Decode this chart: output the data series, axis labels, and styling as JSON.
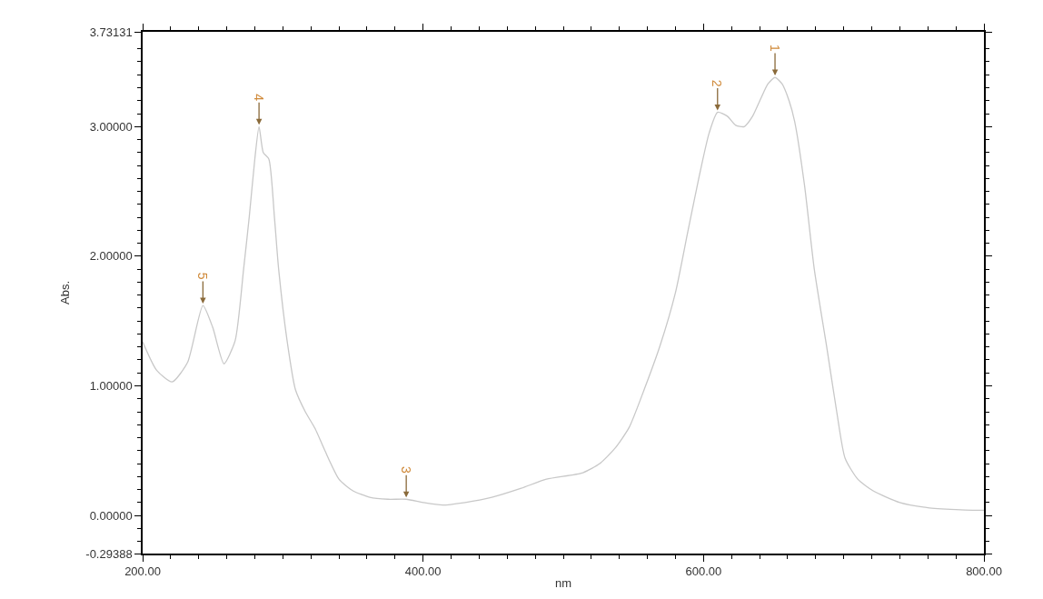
{
  "chart_data": {
    "type": "line",
    "xlabel": "nm",
    "ylabel": "Abs.",
    "x": [
      200,
      210,
      221,
      232,
      243,
      250,
      258,
      266,
      272,
      276,
      280,
      283,
      286,
      290,
      294,
      297,
      303,
      309,
      316,
      323,
      330,
      340,
      350,
      362,
      375,
      388,
      400,
      414,
      430,
      449,
      470,
      488,
      514,
      526,
      537,
      547,
      558,
      569,
      580,
      589,
      597,
      604,
      610,
      617,
      623,
      629,
      635,
      641,
      646,
      651,
      656,
      661,
      665,
      672,
      679,
      688,
      695,
      701,
      710,
      721,
      740,
      760,
      780,
      792,
      800
    ],
    "series": [
      {
        "color": "#c8c8c8",
        "values": [
          1.34,
          1.12,
          1.03,
          1.18,
          1.62,
          1.45,
          1.17,
          1.35,
          1.9,
          2.3,
          2.75,
          3.0,
          2.8,
          2.75,
          2.3,
          1.9,
          1.35,
          0.97,
          0.8,
          0.67,
          0.5,
          0.28,
          0.19,
          0.14,
          0.125,
          0.125,
          0.1,
          0.08,
          0.1,
          0.14,
          0.21,
          0.28,
          0.33,
          0.4,
          0.52,
          0.68,
          0.98,
          1.31,
          1.72,
          2.2,
          2.62,
          2.95,
          3.11,
          3.08,
          3.01,
          3.0,
          3.08,
          3.22,
          3.33,
          3.38,
          3.33,
          3.2,
          3.04,
          2.55,
          1.9,
          1.29,
          0.8,
          0.44,
          0.28,
          0.19,
          0.1,
          0.06,
          0.045,
          0.04,
          0.04
        ]
      }
    ],
    "xlim": [
      200,
      800
    ],
    "ylim": [
      -0.29388,
      3.73131
    ],
    "xticks": [
      {
        "value": 200,
        "label": "200.00"
      },
      {
        "value": 220,
        "label": null
      },
      {
        "value": 240,
        "label": null
      },
      {
        "value": 260,
        "label": null
      },
      {
        "value": 280,
        "label": null
      },
      {
        "value": 300,
        "label": null
      },
      {
        "value": 320,
        "label": null
      },
      {
        "value": 340,
        "label": null
      },
      {
        "value": 360,
        "label": null
      },
      {
        "value": 380,
        "label": null
      },
      {
        "value": 400,
        "label": "400.00"
      },
      {
        "value": 420,
        "label": null
      },
      {
        "value": 440,
        "label": null
      },
      {
        "value": 460,
        "label": null
      },
      {
        "value": 480,
        "label": null
      },
      {
        "value": 500,
        "label": null
      },
      {
        "value": 520,
        "label": null
      },
      {
        "value": 540,
        "label": null
      },
      {
        "value": 560,
        "label": null
      },
      {
        "value": 580,
        "label": null
      },
      {
        "value": 600,
        "label": "600.00"
      },
      {
        "value": 620,
        "label": null
      },
      {
        "value": 640,
        "label": null
      },
      {
        "value": 660,
        "label": null
      },
      {
        "value": 680,
        "label": null
      },
      {
        "value": 700,
        "label": null
      },
      {
        "value": 720,
        "label": null
      },
      {
        "value": 740,
        "label": null
      },
      {
        "value": 760,
        "label": null
      },
      {
        "value": 780,
        "label": null
      },
      {
        "value": 800,
        "label": "800.00"
      }
    ],
    "yticks": [
      {
        "value": -0.29388,
        "label": "-0.29388"
      },
      {
        "value": -0.2,
        "label": null
      },
      {
        "value": -0.1,
        "label": null
      },
      {
        "value": 0,
        "label": "0.00000"
      },
      {
        "value": 0.1,
        "label": null
      },
      {
        "value": 0.2,
        "label": null
      },
      {
        "value": 0.3,
        "label": null
      },
      {
        "value": 0.4,
        "label": null
      },
      {
        "value": 0.5,
        "label": null
      },
      {
        "value": 0.6,
        "label": null
      },
      {
        "value": 0.7,
        "label": null
      },
      {
        "value": 0.8,
        "label": null
      },
      {
        "value": 0.9,
        "label": null
      },
      {
        "value": 1,
        "label": "1.00000"
      },
      {
        "value": 1.1,
        "label": null
      },
      {
        "value": 1.2,
        "label": null
      },
      {
        "value": 1.3,
        "label": null
      },
      {
        "value": 1.4,
        "label": null
      },
      {
        "value": 1.5,
        "label": null
      },
      {
        "value": 1.6,
        "label": null
      },
      {
        "value": 1.7,
        "label": null
      },
      {
        "value": 1.8,
        "label": null
      },
      {
        "value": 1.9,
        "label": null
      },
      {
        "value": 2,
        "label": "2.00000"
      },
      {
        "value": 2.1,
        "label": null
      },
      {
        "value": 2.2,
        "label": null
      },
      {
        "value": 2.3,
        "label": null
      },
      {
        "value": 2.4,
        "label": null
      },
      {
        "value": 2.5,
        "label": null
      },
      {
        "value": 2.6,
        "label": null
      },
      {
        "value": 2.7,
        "label": null
      },
      {
        "value": 2.8,
        "label": null
      },
      {
        "value": 2.9,
        "label": null
      },
      {
        "value": 3,
        "label": "3.00000"
      },
      {
        "value": 3.1,
        "label": null
      },
      {
        "value": 3.2,
        "label": null
      },
      {
        "value": 3.3,
        "label": null
      },
      {
        "value": 3.4,
        "label": null
      },
      {
        "value": 3.5,
        "label": null
      },
      {
        "value": 3.6,
        "label": null
      },
      {
        "value": 3.73131,
        "label": "3.73131"
      }
    ],
    "annotations": [
      {
        "text": "1",
        "x": 651,
        "y": 3.38
      },
      {
        "text": "2",
        "x": 610,
        "y": 3.11
      },
      {
        "text": "3",
        "x": 388,
        "y": 0.125
      },
      {
        "text": "4",
        "x": 283,
        "y": 3.0
      },
      {
        "text": "5",
        "x": 243,
        "y": 1.62
      }
    ],
    "marker": "none",
    "line_style": "solid"
  }
}
